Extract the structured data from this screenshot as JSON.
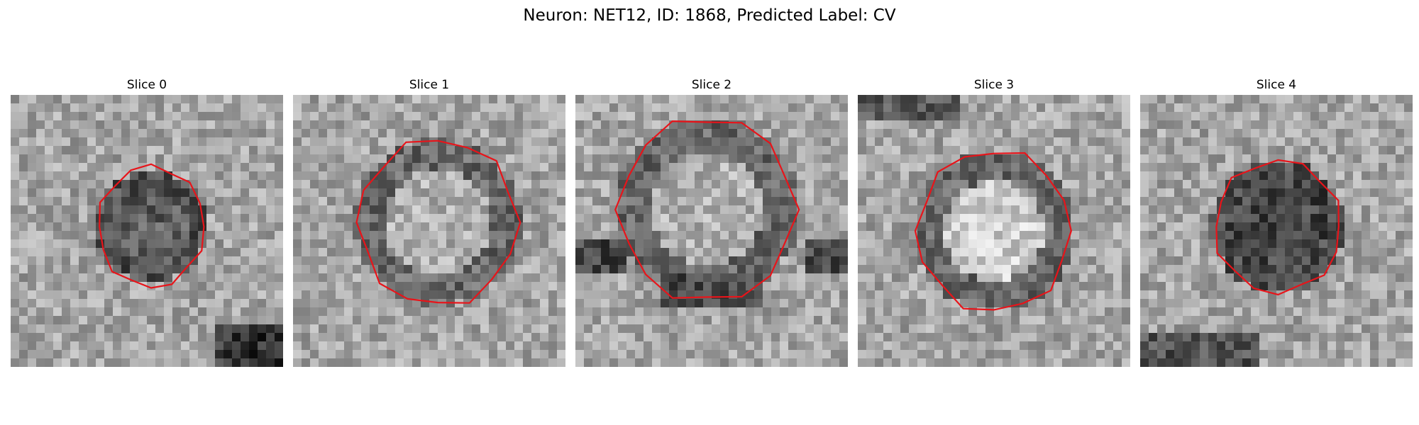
{
  "figure": {
    "title": "Neuron: NET12, ID: 1868, Predicted Label: CV"
  },
  "panels": [
    {
      "title": "Slice 0",
      "blob": "dark",
      "bright_patch": "bottom-right-dark"
    },
    {
      "title": "Slice 1",
      "blob": "light-center-dark-ring"
    },
    {
      "title": "Slice 2",
      "blob": "light-center-dark-band"
    },
    {
      "title": "Slice 3",
      "blob": "bright-center-dark-ring"
    },
    {
      "title": "Slice 4",
      "blob": "dark"
    }
  ],
  "colors": {
    "contour": "#e8141a",
    "background": "#ffffff"
  }
}
